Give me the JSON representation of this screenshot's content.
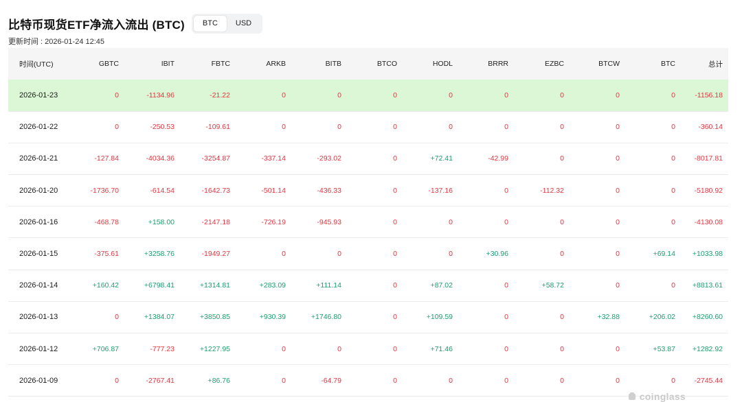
{
  "page": {
    "title": "比特币现货ETF净流入流出 (BTC)",
    "toggle_options": [
      "BTC",
      "USD"
    ],
    "selected_unit": "BTC",
    "update_time": "更新时间 : 2026-01-24 12:45",
    "watermark": "coinglass"
  },
  "table": {
    "columns": [
      "时间(UTC)",
      "GBTC",
      "IBIT",
      "FBTC",
      "ARKB",
      "BITB",
      "BTCO",
      "HODL",
      "BRRR",
      "EZBC",
      "BTCW",
      "BTC",
      "总计"
    ],
    "rows": [
      {
        "highlight": true,
        "cells": [
          "2026-01-23",
          "0",
          "-1134.96",
          "-21.22",
          "0",
          "0",
          "0",
          "0",
          "0",
          "0",
          "0",
          "0",
          "-1156.18"
        ]
      },
      {
        "highlight": false,
        "cells": [
          "2026-01-22",
          "0",
          "-250.53",
          "-109.61",
          "0",
          "0",
          "0",
          "0",
          "0",
          "0",
          "0",
          "0",
          "-360.14"
        ]
      },
      {
        "highlight": false,
        "cells": [
          "2026-01-21",
          "-127.84",
          "-4034.36",
          "-3254.87",
          "-337.14",
          "-293.02",
          "0",
          "+72.41",
          "-42.99",
          "0",
          "0",
          "0",
          "-8017.81"
        ]
      },
      {
        "highlight": false,
        "cells": [
          "2026-01-20",
          "-1736.70",
          "-614.54",
          "-1642.73",
          "-501.14",
          "-436.33",
          "0",
          "-137.16",
          "0",
          "-112.32",
          "0",
          "0",
          "-5180.92"
        ]
      },
      {
        "highlight": false,
        "cells": [
          "2026-01-16",
          "-468.78",
          "+158.00",
          "-2147.18",
          "-726.19",
          "-945.93",
          "0",
          "0",
          "0",
          "0",
          "0",
          "0",
          "-4130.08"
        ]
      },
      {
        "highlight": false,
        "cells": [
          "2026-01-15",
          "-375.61",
          "+3258.76",
          "-1949.27",
          "0",
          "0",
          "0",
          "0",
          "+30.96",
          "0",
          "0",
          "+69.14",
          "+1033.98"
        ]
      },
      {
        "highlight": false,
        "cells": [
          "2026-01-14",
          "+160.42",
          "+6798.41",
          "+1314.81",
          "+283.09",
          "+111.14",
          "0",
          "+87.02",
          "0",
          "+58.72",
          "0",
          "0",
          "+8813.61"
        ]
      },
      {
        "highlight": false,
        "cells": [
          "2026-01-13",
          "0",
          "+1384.07",
          "+3850.85",
          "+930.39",
          "+1746.80",
          "0",
          "+109.59",
          "0",
          "0",
          "+32.88",
          "+206.02",
          "+8260.60"
        ]
      },
      {
        "highlight": false,
        "cells": [
          "2026-01-12",
          "+706.87",
          "-777.23",
          "+1227.95",
          "0",
          "0",
          "0",
          "+71.46",
          "0",
          "0",
          "0",
          "+53.87",
          "+1282.92"
        ]
      },
      {
        "highlight": false,
        "cells": [
          "2026-01-09",
          "0",
          "-2767.41",
          "+86.76",
          "0",
          "-64.79",
          "0",
          "0",
          "0",
          "0",
          "0",
          "0",
          "-2745.44"
        ]
      }
    ]
  },
  "colors": {
    "negative": "#e5343f",
    "positive": "#1a9e6e",
    "highlight_row": "#dbf7d5",
    "header_bg": "#f5f5f5"
  }
}
